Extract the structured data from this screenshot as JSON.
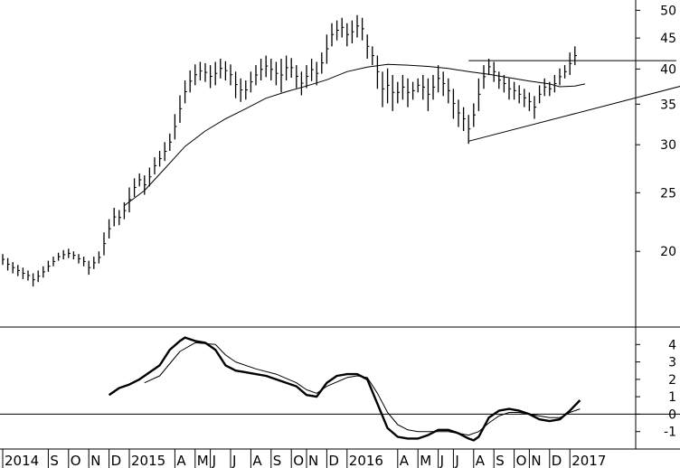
{
  "chart_data": [
    {
      "type": "ohlc-bar",
      "panel": "price",
      "scale": "log",
      "ylim": [
        15,
        52
      ],
      "yticks": [
        20,
        25,
        30,
        35,
        40,
        45,
        50
      ],
      "ytick_labels": [
        "20",
        "25",
        "30",
        "35",
        "40",
        "45",
        "50"
      ],
      "bars": [
        [
          19.8,
          19.0
        ],
        [
          19.5,
          18.6
        ],
        [
          19.2,
          18.4
        ],
        [
          19.0,
          18.2
        ],
        [
          18.8,
          18.0
        ],
        [
          18.6,
          17.9
        ],
        [
          18.4,
          17.5
        ],
        [
          18.6,
          17.8
        ],
        [
          18.9,
          18.1
        ],
        [
          19.3,
          18.5
        ],
        [
          19.6,
          18.9
        ],
        [
          19.9,
          19.3
        ],
        [
          20.1,
          19.4
        ],
        [
          20.2,
          19.5
        ],
        [
          20.0,
          19.4
        ],
        [
          19.8,
          19.1
        ],
        [
          19.6,
          18.9
        ],
        [
          19.3,
          18.3
        ],
        [
          19.6,
          18.7
        ],
        [
          20.0,
          19.1
        ],
        [
          21.5,
          19.7
        ],
        [
          22.6,
          21.0
        ],
        [
          23.6,
          22.0
        ],
        [
          23.4,
          22.1
        ],
        [
          24.1,
          22.6
        ],
        [
          25.5,
          23.2
        ],
        [
          26.4,
          24.6
        ],
        [
          26.9,
          25.6
        ],
        [
          26.7,
          24.8
        ],
        [
          27.5,
          25.6
        ],
        [
          28.6,
          26.8
        ],
        [
          29.3,
          27.6
        ],
        [
          30.3,
          28.2
        ],
        [
          31.3,
          29.3
        ],
        [
          33.7,
          30.6
        ],
        [
          36.2,
          32.6
        ],
        [
          38.3,
          35.1
        ],
        [
          39.8,
          36.6
        ],
        [
          40.7,
          37.6
        ],
        [
          41.1,
          38.3
        ],
        [
          40.9,
          38.1
        ],
        [
          40.6,
          37.2
        ],
        [
          41.1,
          37.6
        ],
        [
          41.6,
          38.6
        ],
        [
          41.2,
          38.3
        ],
        [
          40.7,
          37.6
        ],
        [
          39.6,
          35.8
        ],
        [
          38.6,
          35.3
        ],
        [
          38.3,
          35.6
        ],
        [
          39.6,
          36.6
        ],
        [
          40.6,
          37.6
        ],
        [
          41.6,
          38.3
        ],
        [
          42.1,
          38.8
        ],
        [
          41.6,
          38.3
        ],
        [
          41.1,
          37.6
        ],
        [
          41.6,
          36.6
        ],
        [
          42.1,
          38.3
        ],
        [
          41.7,
          38.7
        ],
        [
          40.6,
          37.2
        ],
        [
          39.6,
          36.2
        ],
        [
          40.6,
          37.2
        ],
        [
          41.6,
          38.2
        ],
        [
          41.1,
          37.6
        ],
        [
          42.6,
          39.3
        ],
        [
          45.6,
          40.8
        ],
        [
          47.6,
          43.6
        ],
        [
          48.1,
          44.6
        ],
        [
          48.6,
          45.1
        ],
        [
          47.6,
          43.6
        ],
        [
          48.1,
          44.1
        ],
        [
          49.1,
          45.1
        ],
        [
          48.6,
          44.6
        ],
        [
          45.6,
          41.6
        ],
        [
          43.6,
          40.6
        ],
        [
          42.1,
          37.1
        ],
        [
          39.6,
          34.6
        ],
        [
          40.1,
          35.1
        ],
        [
          39.1,
          34.1
        ],
        [
          38.1,
          35.1
        ],
        [
          39.1,
          35.6
        ],
        [
          38.6,
          34.6
        ],
        [
          38.1,
          35.6
        ],
        [
          38.6,
          36.6
        ],
        [
          39.1,
          35.6
        ],
        [
          38.6,
          34.1
        ],
        [
          39.1,
          35.6
        ],
        [
          40.6,
          36.6
        ],
        [
          39.6,
          36.1
        ],
        [
          38.6,
          35.1
        ],
        [
          37.1,
          33.1
        ],
        [
          35.6,
          32.1
        ],
        [
          34.6,
          31.6
        ],
        [
          33.6,
          30.1
        ],
        [
          35.1,
          32.1
        ],
        [
          38.6,
          34.1
        ],
        [
          40.6,
          37.1
        ],
        [
          41.6,
          39.1
        ],
        [
          41.1,
          38.1
        ],
        [
          39.6,
          37.1
        ],
        [
          39.1,
          36.6
        ],
        [
          38.6,
          35.6
        ],
        [
          38.1,
          35.6
        ],
        [
          37.6,
          35.1
        ],
        [
          37.1,
          34.6
        ],
        [
          36.6,
          34.1
        ],
        [
          36.1,
          33.1
        ],
        [
          37.6,
          35.1
        ],
        [
          38.6,
          36.1
        ],
        [
          38.1,
          36.1
        ],
        [
          39.1,
          36.6
        ],
        [
          40.1,
          37.6
        ],
        [
          40.6,
          38.6
        ],
        [
          42.6,
          39.1
        ],
        [
          43.6,
          40.6
        ]
      ],
      "moving_average": [
        [
          24,
          23.8
        ],
        [
          28,
          25.2
        ],
        [
          32,
          27.4
        ],
        [
          36,
          29.8
        ],
        [
          40,
          31.6
        ],
        [
          44,
          33.1
        ],
        [
          48,
          34.4
        ],
        [
          52,
          35.8
        ],
        [
          56,
          36.7
        ],
        [
          60,
          37.5
        ],
        [
          64,
          38.4
        ],
        [
          68,
          39.6
        ],
        [
          72,
          40.3
        ],
        [
          76,
          40.7
        ],
        [
          80,
          40.6
        ],
        [
          84,
          40.4
        ],
        [
          88,
          40.1
        ],
        [
          92,
          39.6
        ],
        [
          96,
          39.2
        ],
        [
          100,
          38.7
        ],
        [
          104,
          38.2
        ],
        [
          108,
          37.8
        ],
        [
          110,
          37.4
        ],
        [
          113,
          37.5
        ],
        [
          115,
          37.8
        ]
      ],
      "trendlines": [
        [
          [
            92,
            41.3
          ],
          [
            133,
            41.3
          ]
        ],
        [
          [
            92,
            30.4
          ],
          [
            134,
            37.5
          ]
        ]
      ]
    },
    {
      "type": "line",
      "panel": "oscillator",
      "ylim": [
        -2,
        5
      ],
      "yticks": [
        -1,
        0,
        1,
        2,
        3,
        4
      ],
      "ytick_labels": [
        "-1",
        "0",
        "1",
        "2",
        "3",
        "4"
      ],
      "zero_line": true,
      "series": [
        {
          "role": "main",
          "values": [
            [
              21,
              1.1
            ],
            [
              23,
              1.5
            ],
            [
              25,
              1.7
            ],
            [
              27,
              2.0
            ],
            [
              29,
              2.4
            ],
            [
              31,
              2.8
            ],
            [
              33,
              3.7
            ],
            [
              35,
              4.2
            ],
            [
              36,
              4.4
            ],
            [
              38,
              4.2
            ],
            [
              40,
              4.1
            ],
            [
              42,
              3.7
            ],
            [
              44,
              2.8
            ],
            [
              46,
              2.5
            ],
            [
              48,
              2.4
            ],
            [
              50,
              2.3
            ],
            [
              52,
              2.2
            ],
            [
              54,
              2.0
            ],
            [
              56,
              1.8
            ],
            [
              58,
              1.6
            ],
            [
              60,
              1.1
            ],
            [
              62,
              1.0
            ],
            [
              64,
              1.8
            ],
            [
              66,
              2.2
            ],
            [
              68,
              2.3
            ],
            [
              70,
              2.3
            ],
            [
              72,
              2.0
            ],
            [
              74,
              0.6
            ],
            [
              76,
              -0.8
            ],
            [
              78,
              -1.3
            ],
            [
              80,
              -1.4
            ],
            [
              82,
              -1.4
            ],
            [
              84,
              -1.2
            ],
            [
              86,
              -0.9
            ],
            [
              88,
              -0.9
            ],
            [
              90,
              -1.1
            ],
            [
              92,
              -1.4
            ],
            [
              93,
              -1.5
            ],
            [
              94,
              -1.3
            ],
            [
              96,
              -0.2
            ],
            [
              98,
              0.2
            ],
            [
              100,
              0.3
            ],
            [
              102,
              0.2
            ],
            [
              104,
              0.0
            ],
            [
              106,
              -0.3
            ],
            [
              108,
              -0.4
            ],
            [
              110,
              -0.3
            ],
            [
              112,
              0.2
            ],
            [
              114,
              0.8
            ]
          ]
        },
        {
          "role": "signal",
          "values": [
            [
              28,
              1.8
            ],
            [
              31,
              2.2
            ],
            [
              35,
              3.6
            ],
            [
              38,
              4.1
            ],
            [
              42,
              4.0
            ],
            [
              44,
              3.4
            ],
            [
              46,
              3.0
            ],
            [
              50,
              2.6
            ],
            [
              54,
              2.3
            ],
            [
              58,
              1.8
            ],
            [
              60,
              1.4
            ],
            [
              62,
              1.2
            ],
            [
              64,
              1.6
            ],
            [
              68,
              2.1
            ],
            [
              70,
              2.2
            ],
            [
              72,
              2.1
            ],
            [
              74,
              1.2
            ],
            [
              76,
              0.1
            ],
            [
              78,
              -0.6
            ],
            [
              80,
              -0.9
            ],
            [
              82,
              -1.0
            ],
            [
              84,
              -1.0
            ],
            [
              86,
              -1.0
            ],
            [
              88,
              -1.0
            ],
            [
              90,
              -1.1
            ],
            [
              92,
              -1.2
            ],
            [
              94,
              -1.0
            ],
            [
              96,
              -0.5
            ],
            [
              98,
              -0.1
            ],
            [
              100,
              0.1
            ],
            [
              102,
              0.1
            ],
            [
              104,
              0.0
            ],
            [
              106,
              -0.1
            ],
            [
              108,
              -0.2
            ],
            [
              110,
              -0.2
            ],
            [
              112,
              0.1
            ],
            [
              114,
              0.3
            ]
          ]
        }
      ]
    }
  ],
  "x_axis": {
    "labels": [
      {
        "text": "2014",
        "bar": 0
      },
      {
        "text": "S",
        "bar": 9
      },
      {
        "text": "O",
        "bar": 13
      },
      {
        "text": "N",
        "bar": 17
      },
      {
        "text": "D",
        "bar": 21
      },
      {
        "text": "2015",
        "bar": 25
      },
      {
        "text": "A",
        "bar": 34
      },
      {
        "text": "M",
        "bar": 38
      },
      {
        "text": "J",
        "bar": 41
      },
      {
        "text": "J",
        "bar": 45
      },
      {
        "text": "A",
        "bar": 49
      },
      {
        "text": "S",
        "bar": 53
      },
      {
        "text": "O",
        "bar": 57
      },
      {
        "text": "N",
        "bar": 60
      },
      {
        "text": "D",
        "bar": 64
      },
      {
        "text": "2016",
        "bar": 68
      },
      {
        "text": "A",
        "bar": 78
      },
      {
        "text": "M",
        "bar": 82
      },
      {
        "text": "J",
        "bar": 86
      },
      {
        "text": "J",
        "bar": 89
      },
      {
        "text": "A",
        "bar": 93
      },
      {
        "text": "S",
        "bar": 97
      },
      {
        "text": "O",
        "bar": 101
      },
      {
        "text": "N",
        "bar": 104
      },
      {
        "text": "D",
        "bar": 108
      },
      {
        "text": "2017",
        "bar": 112
      }
    ]
  }
}
